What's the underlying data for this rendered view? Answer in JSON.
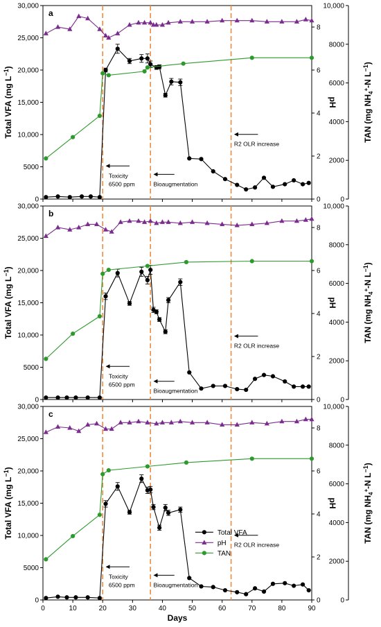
{
  "chart_data": [
    {
      "panel": "a",
      "type": "line",
      "xlabel": "Days",
      "ylabel_left": "Total VFA (mg L-1)",
      "ylabel_right_inner": "pH",
      "ylabel_right_outer": "TAN (mg NH4+-N L-1)",
      "xlim": [
        0,
        90
      ],
      "ylim_left": [
        0,
        30000
      ],
      "ylim_ph": [
        0,
        9
      ],
      "ylim_tan": [
        0,
        10000
      ],
      "vlines": [
        20,
        36,
        63
      ],
      "annotations": [
        {
          "text": "Toxicity",
          "x": 22,
          "y": 3300
        },
        {
          "text": "6500 ppm",
          "x": 22,
          "y": 2000
        },
        {
          "text": "Bioaugmentation",
          "x": 37,
          "y": 2000
        },
        {
          "text": "R2 OLR increase",
          "x": 64,
          "y": 8200
        }
      ],
      "series": [
        {
          "name": "Total VFA",
          "axis": "left",
          "x": [
            1,
            5,
            9,
            13,
            16,
            19,
            21,
            25,
            29,
            33,
            35,
            36,
            38,
            39,
            41,
            43,
            46,
            49,
            53,
            57,
            61,
            65,
            68,
            71,
            74,
            77,
            81,
            84,
            87,
            89
          ],
          "y": [
            300,
            400,
            300,
            400,
            400,
            300,
            20000,
            23300,
            21400,
            21800,
            21800,
            20900,
            20400,
            20500,
            16100,
            18200,
            18100,
            6300,
            6200,
            4300,
            3100,
            2200,
            1500,
            1800,
            3300,
            1900,
            2300,
            2900,
            2300,
            2500
          ],
          "err": [
            0,
            0,
            0,
            0,
            0,
            0,
            300,
            700,
            400,
            600,
            700,
            500,
            300,
            300,
            300,
            500,
            500,
            0,
            0,
            0,
            0,
            0,
            0,
            0,
            0,
            0,
            0,
            0,
            0,
            0
          ]
        },
        {
          "name": "pH",
          "axis": "ph",
          "x": [
            1,
            5,
            9,
            12,
            15,
            19,
            21,
            22,
            25,
            29,
            32,
            34,
            36,
            37,
            38,
            40,
            42,
            46,
            50,
            55,
            60,
            65,
            70,
            75,
            80,
            85,
            88,
            90
          ],
          "y": [
            7.7,
            8.0,
            7.9,
            8.5,
            8.4,
            7.9,
            7.6,
            7.5,
            7.7,
            8.1,
            8.2,
            8.2,
            8.2,
            8.1,
            8.1,
            8.1,
            8.2,
            8.25,
            8.25,
            8.25,
            8.3,
            8.3,
            8.3,
            8.25,
            8.25,
            8.25,
            8.35,
            8.3
          ]
        },
        {
          "name": "TAN",
          "axis": "tan",
          "x": [
            1,
            10,
            19,
            20,
            22,
            34,
            35,
            47,
            70,
            90
          ],
          "y": [
            2100,
            3200,
            4300,
            6500,
            6400,
            6600,
            6800,
            7000,
            7300,
            7300
          ]
        }
      ]
    },
    {
      "panel": "b",
      "type": "line",
      "xlabel": "Days",
      "ylabel_left": "Total VFA (mg L-1)",
      "ylabel_right_inner": "pH",
      "ylabel_right_outer": "TAN (mg NH4+-N L-1)",
      "xlim": [
        0,
        90
      ],
      "ylim_left": [
        0,
        30000
      ],
      "ylim_ph": [
        0,
        9
      ],
      "ylim_tan": [
        0,
        10000
      ],
      "vlines": [
        20,
        36,
        63
      ],
      "annotations": [
        {
          "text": "Toxicity",
          "x": 22,
          "y": 3300
        },
        {
          "text": "6500 ppm",
          "x": 22,
          "y": 2000
        },
        {
          "text": "Bioaugmentation",
          "x": 37,
          "y": 1000
        },
        {
          "text": "R2 OLR increase",
          "x": 64,
          "y": 8000
        }
      ],
      "series": [
        {
          "name": "Total VFA",
          "axis": "left",
          "x": [
            1,
            5,
            8,
            11,
            15,
            19,
            21,
            25,
            29,
            33,
            35,
            36,
            37,
            38,
            39,
            41,
            42,
            46,
            49,
            53,
            57,
            61,
            65,
            68,
            71,
            74,
            77,
            81,
            84,
            87,
            89
          ],
          "y": [
            300,
            300,
            300,
            300,
            300,
            300,
            16000,
            19600,
            14900,
            19800,
            18500,
            20100,
            13900,
            13600,
            12400,
            10500,
            15400,
            18200,
            4200,
            1700,
            2100,
            2100,
            1600,
            1500,
            3200,
            3800,
            3600,
            2800,
            2000,
            2000,
            2000
          ],
          "err": [
            0,
            0,
            0,
            0,
            0,
            0,
            500,
            600,
            300,
            700,
            600,
            700,
            400,
            300,
            300,
            300,
            400,
            500,
            0,
            0,
            0,
            0,
            0,
            0,
            0,
            0,
            0,
            0,
            0,
            0,
            0
          ]
        },
        {
          "name": "pH",
          "axis": "ph",
          "x": [
            1,
            5,
            9,
            12,
            15,
            18,
            21,
            23,
            26,
            29,
            32,
            34,
            36,
            38,
            40,
            42,
            46,
            50,
            55,
            60,
            65,
            70,
            75,
            80,
            85,
            88,
            90
          ],
          "y": [
            7.6,
            8.0,
            7.9,
            8.0,
            8.15,
            8.15,
            7.9,
            7.8,
            8.25,
            8.3,
            8.3,
            8.25,
            8.3,
            8.2,
            8.25,
            8.25,
            8.2,
            8.25,
            8.2,
            8.15,
            8.1,
            8.15,
            8.2,
            8.3,
            8.3,
            8.35,
            8.4
          ]
        },
        {
          "name": "TAN",
          "axis": "tan",
          "x": [
            1,
            10,
            19,
            20,
            22,
            35,
            48,
            70,
            90
          ],
          "y": [
            2100,
            3400,
            4300,
            6500,
            6700,
            6900,
            7100,
            7150,
            7150
          ]
        }
      ]
    },
    {
      "panel": "c",
      "type": "line",
      "xlabel": "Days",
      "ylabel_left": "Total VFA (mg L-1)",
      "ylabel_right_inner": "pH",
      "ylabel_right_outer": "TAN (mg NH4+-N L-1)",
      "xlim": [
        0,
        90
      ],
      "ylim_left": [
        0,
        30000
      ],
      "ylim_ph": [
        0,
        9
      ],
      "ylim_tan": [
        0,
        10000
      ],
      "vlines": [
        20,
        36,
        63
      ],
      "annotations": [
        {
          "text": "Toxicity",
          "x": 22,
          "y": 3300
        },
        {
          "text": "6500 ppm",
          "x": 22,
          "y": 2000
        },
        {
          "text": "Bioaugmentation",
          "x": 37,
          "y": 2000
        },
        {
          "text": "R2 OLR increase",
          "x": 64,
          "y": 8200
        }
      ],
      "legend": {
        "placement": "center-right",
        "entries": [
          "Total VFA",
          "pH",
          "TAN"
        ]
      },
      "series": [
        {
          "name": "Total VFA",
          "axis": "left",
          "x": [
            1,
            5,
            8,
            11,
            15,
            19,
            21,
            25,
            29,
            33,
            35,
            36,
            37,
            39,
            41,
            42,
            46,
            49,
            53,
            57,
            61,
            65,
            68,
            71,
            74,
            77,
            81,
            84,
            87,
            89
          ],
          "y": [
            300,
            500,
            400,
            400,
            400,
            300,
            14900,
            17600,
            13600,
            18800,
            17000,
            17100,
            14400,
            11200,
            14300,
            13500,
            14000,
            3400,
            2100,
            2000,
            1500,
            1200,
            900,
            1800,
            1300,
            2500,
            2600,
            2200,
            2400,
            1500
          ],
          "err": [
            0,
            0,
            0,
            0,
            0,
            0,
            500,
            600,
            300,
            600,
            500,
            500,
            400,
            400,
            500,
            400,
            400,
            0,
            0,
            0,
            0,
            0,
            0,
            0,
            0,
            0,
            0,
            0,
            0,
            0
          ]
        },
        {
          "name": "pH",
          "axis": "ph",
          "x": [
            1,
            5,
            9,
            12,
            15,
            18,
            21,
            23,
            26,
            29,
            32,
            35,
            38,
            40,
            43,
            46,
            50,
            55,
            60,
            65,
            70,
            75,
            80,
            85,
            88,
            90
          ],
          "y": [
            7.8,
            8.05,
            8.0,
            7.85,
            8.15,
            8.2,
            7.95,
            7.95,
            8.25,
            8.25,
            8.3,
            8.25,
            8.2,
            8.25,
            8.25,
            8.3,
            8.25,
            8.25,
            8.15,
            8.15,
            8.25,
            8.2,
            8.3,
            8.3,
            8.4,
            8.4
          ]
        },
        {
          "name": "TAN",
          "axis": "tan",
          "x": [
            1,
            10,
            19,
            20,
            22,
            35,
            48,
            70,
            90
          ],
          "y": [
            2100,
            3300,
            4400,
            6500,
            6700,
            6900,
            7100,
            7300,
            7300
          ]
        }
      ]
    }
  ],
  "axis_titles": {
    "left_main": "Total VFA (mg L",
    "left_sup": "−1",
    "left_close": ")",
    "ph": "pH",
    "tan_main": "TAN (mg NH",
    "tan_sup1": "4",
    "tan_sup2": "+",
    "tan_mid": "-N L",
    "tan_sup3": "−1",
    "tan_close": ")",
    "x": "Days"
  },
  "ticks": {
    "left": [
      "0",
      "5000",
      "10,000",
      "15,000",
      "20,000",
      "25,000",
      "30,000"
    ],
    "ph": [
      "0",
      "2",
      "4",
      "6",
      "8"
    ],
    "tan": [
      "0",
      "2000",
      "4000",
      "6000",
      "8000",
      "10,000"
    ],
    "x": [
      "0",
      "10",
      "20",
      "30",
      "40",
      "50",
      "60",
      "70",
      "80",
      "90"
    ]
  },
  "colors": {
    "vfa": "#000000",
    "ph": "#7b2c8f",
    "tan": "#2e9a2e",
    "vline": "#f08a3c"
  }
}
